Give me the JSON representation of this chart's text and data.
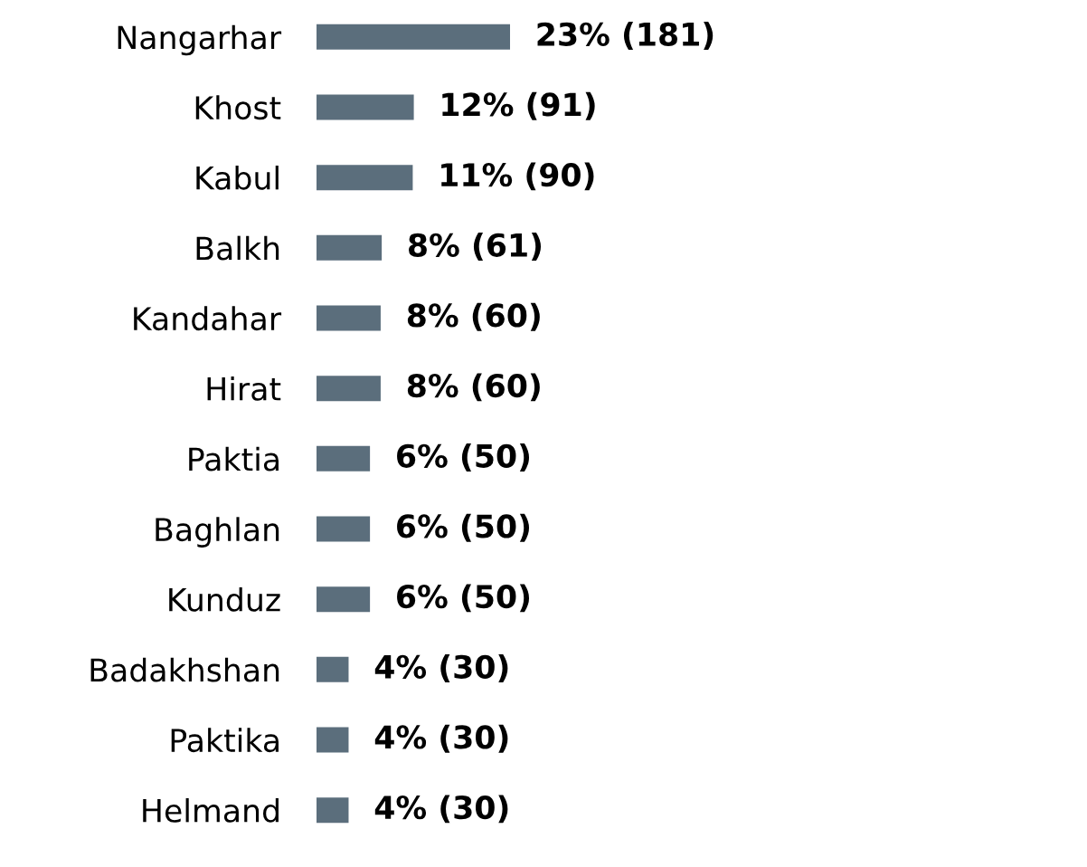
{
  "chart_data": {
    "type": "bar",
    "orientation": "horizontal",
    "categories": [
      "Nangarhar",
      "Khost",
      "Kabul",
      "Balkh",
      "Kandahar",
      "Hirat",
      "Paktia",
      "Baghlan",
      "Kunduz",
      "Badakhshan",
      "Paktika",
      "Helmand"
    ],
    "values": [
      181,
      91,
      90,
      61,
      60,
      60,
      50,
      50,
      50,
      30,
      30,
      30
    ],
    "value_labels": [
      "23% (181)",
      "12% (91)",
      "11% (90)",
      "8% (61)",
      "8% (60)",
      "8% (60)",
      "6% (50)",
      "6% (50)",
      "6% (50)",
      "4% (30)",
      "4% (30)",
      "4% (30)"
    ],
    "color": "#5b6e7c",
    "grid": false,
    "legend": false
  }
}
